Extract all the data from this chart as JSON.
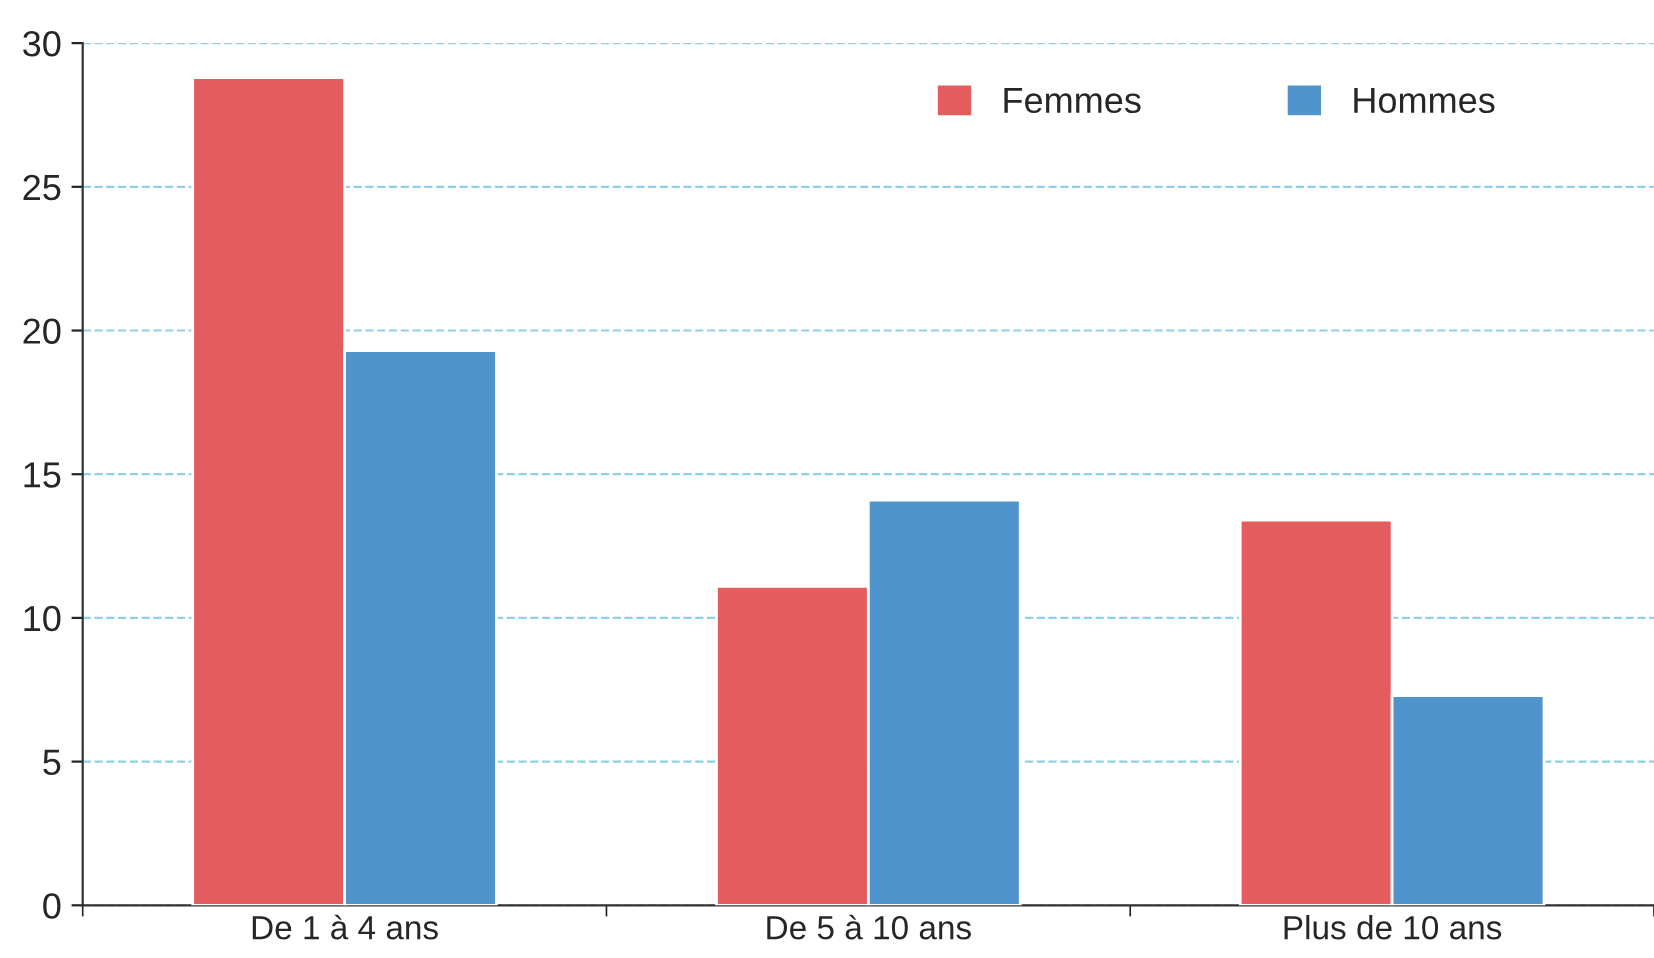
{
  "chart_data": {
    "type": "bar",
    "categories": [
      "De 1 à 4 ans",
      "De 5 à 10 ans",
      "Plus de 10 ans"
    ],
    "series": [
      {
        "name": "Femmes",
        "color": "#e55c5f",
        "values": [
          28.8,
          11.1,
          13.4
        ]
      },
      {
        "name": "Hommes",
        "color": "#4f94cd",
        "values": [
          19.3,
          14.1,
          7.3
        ]
      }
    ],
    "ylim": [
      0,
      30
    ],
    "yticks": [
      0,
      5,
      10,
      15,
      20,
      25,
      30
    ],
    "grid": "y",
    "legend": "top right"
  }
}
